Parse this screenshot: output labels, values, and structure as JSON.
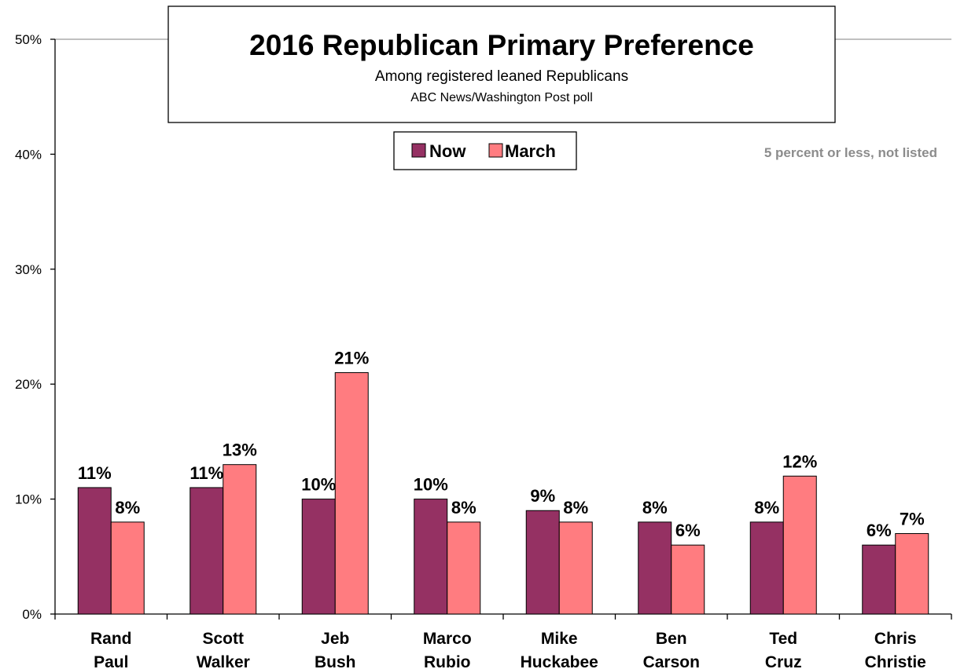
{
  "chart_data": {
    "type": "bar",
    "title": "2016 Republican Primary Preference",
    "subtitle": "Among registered leaned Republicans",
    "source": "ABC News/Washington  Post poll",
    "note": "5 percent or less, not listed",
    "categories": [
      [
        "Rand",
        "Paul"
      ],
      [
        "Scott",
        "Walker"
      ],
      [
        "Jeb",
        "Bush"
      ],
      [
        "Marco",
        "Rubio"
      ],
      [
        "Mike",
        "Huckabee"
      ],
      [
        "Ben",
        "Carson"
      ],
      [
        "Ted",
        "Cruz"
      ],
      [
        "Chris",
        "Christie"
      ]
    ],
    "series": [
      {
        "name": "Now",
        "color": "#953163",
        "values": [
          11,
          11,
          10,
          10,
          9,
          8,
          8,
          6
        ]
      },
      {
        "name": "March",
        "color": "#ff7c80",
        "values": [
          8,
          13,
          21,
          8,
          8,
          6,
          12,
          7
        ]
      }
    ],
    "ylim": [
      0,
      50
    ],
    "yticks": [
      "0%",
      "10%",
      "20%",
      "30%",
      "40%",
      "50%"
    ],
    "ytick_values": [
      0,
      10,
      20,
      30,
      40,
      50
    ],
    "value_suffix": "%",
    "legend_position": "top-center",
    "grid": false
  }
}
